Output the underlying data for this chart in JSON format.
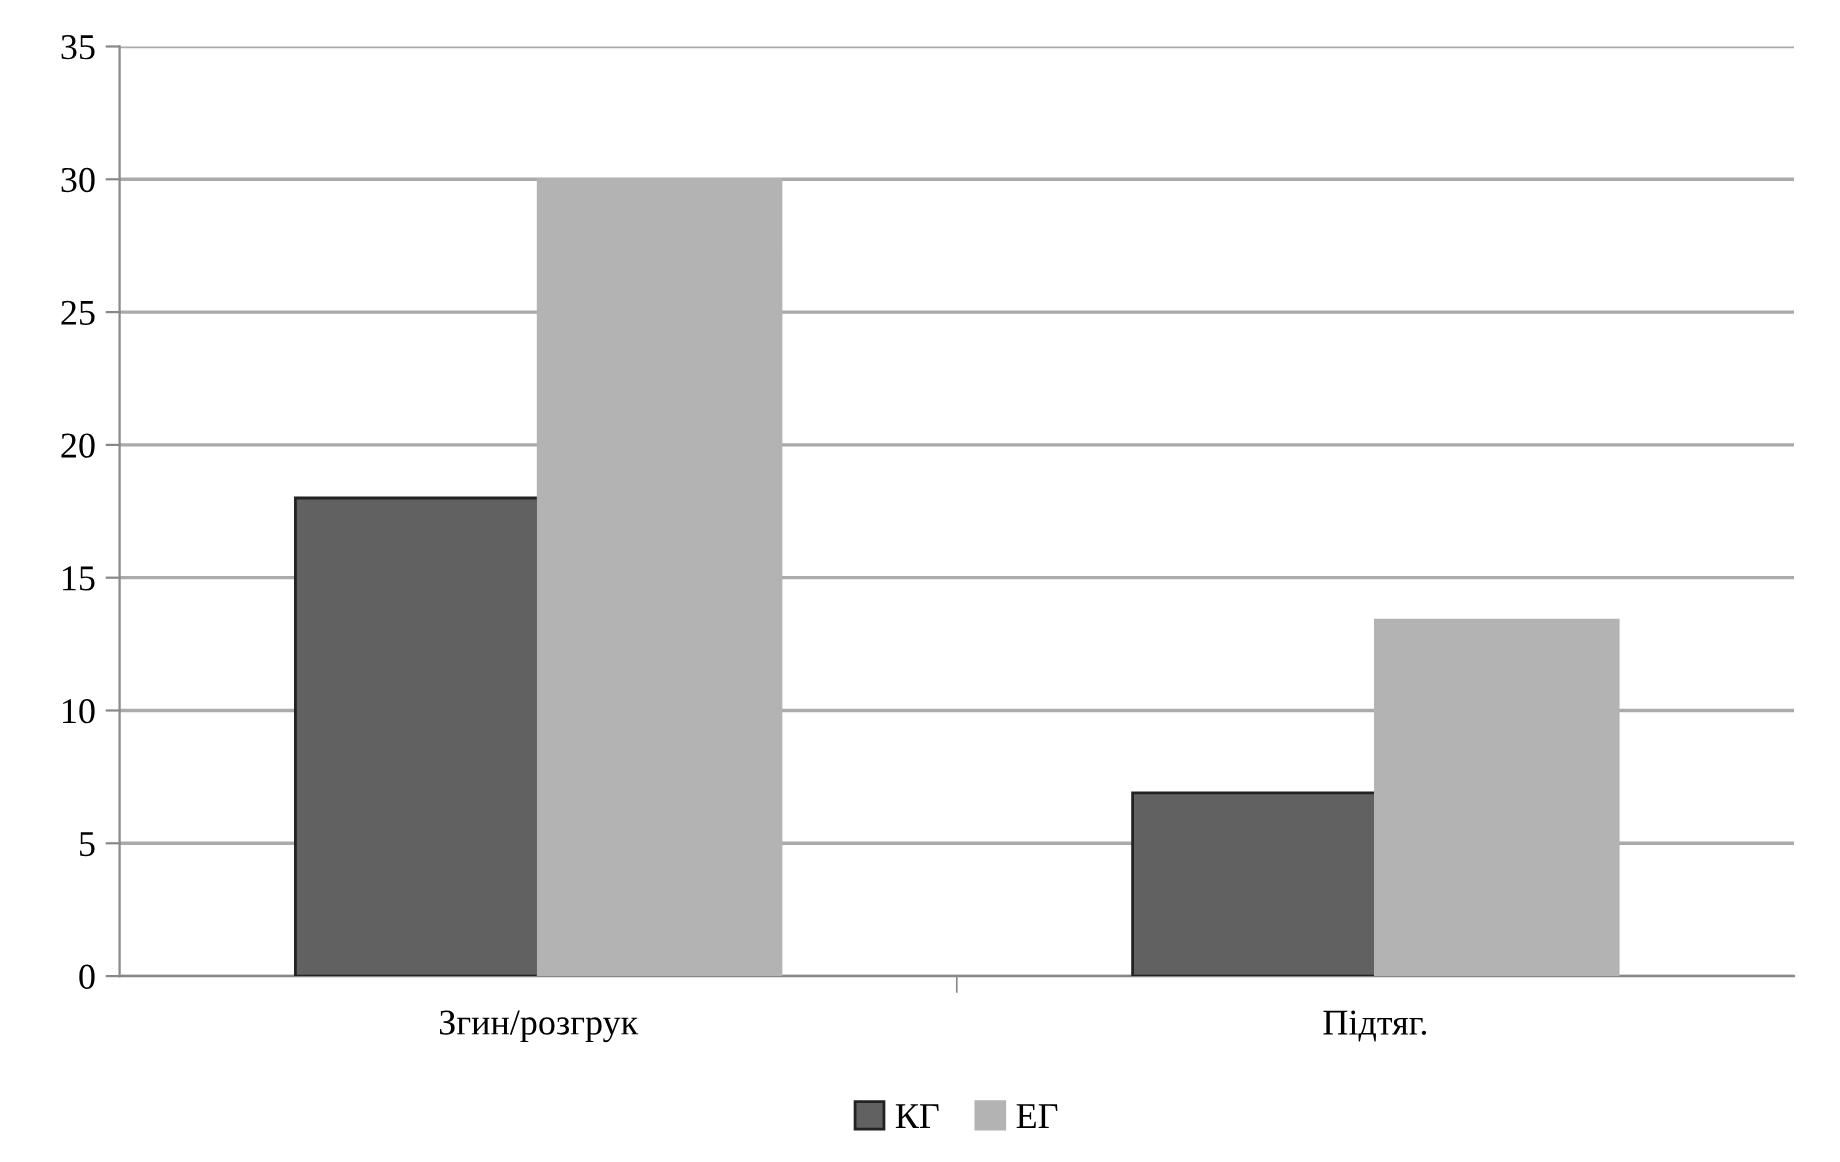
{
  "chart_data": {
    "type": "bar",
    "categories": [
      "Згин/розгрук",
      "Підтяг."
    ],
    "series": [
      {
        "name": "КГ",
        "color": "#616161",
        "values": [
          18,
          6.9
        ]
      },
      {
        "name": "ЕГ",
        "color": "#b3b3b3",
        "values": [
          30,
          13.4
        ]
      }
    ],
    "ylim": [
      0,
      35
    ],
    "yticks": [
      0,
      5,
      10,
      15,
      20,
      25,
      30,
      35
    ],
    "grid": "y",
    "legend": "bottom"
  }
}
